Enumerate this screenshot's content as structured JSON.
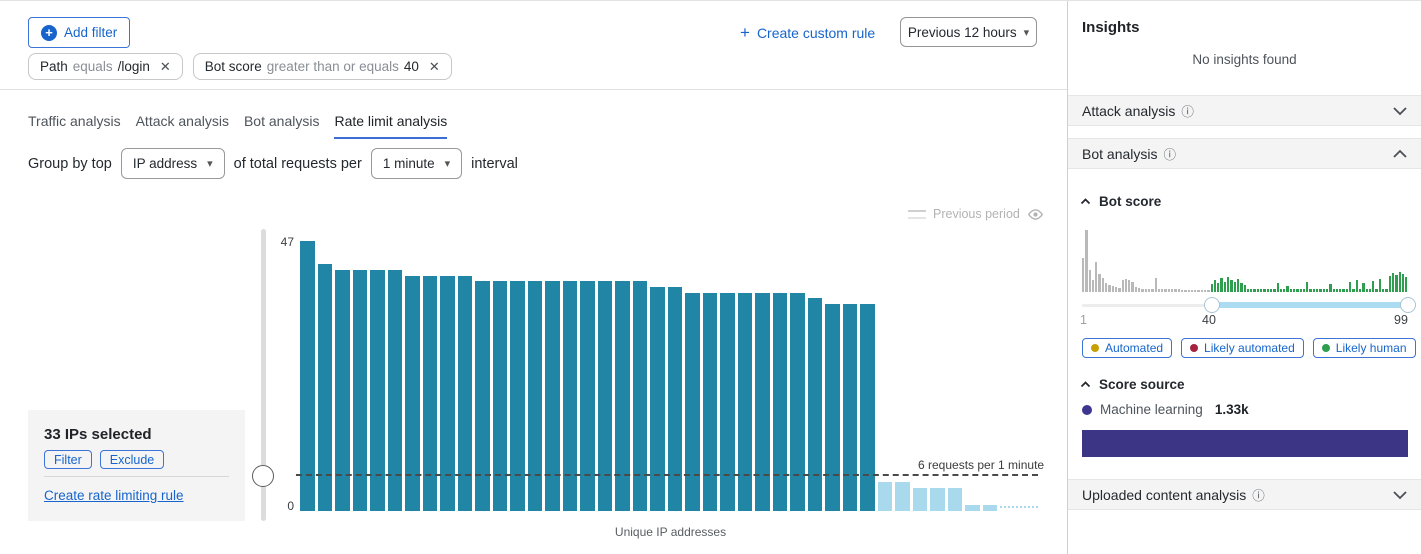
{
  "icons": {
    "plus": "+",
    "close": "✕",
    "caret_down": "▾",
    "info": "ⓘ"
  },
  "header": {
    "add_filter_label": "Add filter",
    "filters": [
      {
        "field": "Path",
        "operator": "equals",
        "value": "/login"
      },
      {
        "field": "Bot score",
        "operator": "greater than or equals",
        "value": "40"
      }
    ],
    "create_custom_rule_label": "Create custom rule",
    "time_range_label": "Previous 12 hours"
  },
  "tabs": [
    {
      "label": "Traffic analysis",
      "active": false
    },
    {
      "label": "Attack analysis",
      "active": false
    },
    {
      "label": "Bot analysis",
      "active": false
    },
    {
      "label": "Rate limit analysis",
      "active": true
    }
  ],
  "group_by": {
    "prefix": "Group by top",
    "dimension": "IP address",
    "middle": "of total requests per",
    "interval": "1 minute",
    "suffix": "interval"
  },
  "selection_panel": {
    "title": "33 IPs selected",
    "filter_label": "Filter",
    "exclude_label": "Exclude",
    "link_label": "Create rate limiting rule"
  },
  "chart_data": {
    "type": "bar",
    "title": "",
    "xlabel": "Unique IP addresses",
    "ylabel": "",
    "ylim": [
      0,
      47
    ],
    "y_top_label": "47",
    "y_bottom_label": "0",
    "legend": [
      "Previous period"
    ],
    "legend_position": "top-right",
    "grid": false,
    "threshold": {
      "value": 6,
      "label": "6 requests per 1 minute"
    },
    "categories_note": "40 unique IP addresses, sorted descending by requests per 1 minute",
    "selected_values": [
      47,
      43,
      42,
      42,
      42,
      42,
      41,
      41,
      41,
      41,
      40,
      40,
      40,
      40,
      40,
      40,
      40,
      40,
      40,
      40,
      39,
      39,
      38,
      38,
      38,
      38,
      38,
      38,
      38,
      37,
      36,
      36,
      36
    ],
    "unselected_values": [
      5,
      5,
      4,
      4,
      4,
      1,
      1
    ],
    "colors": {
      "selected": "#2185a6",
      "unselected": "#a9d9ec"
    }
  },
  "insights": {
    "title": "Insights",
    "empty_message": "No insights found",
    "sections": [
      {
        "label": "Attack analysis",
        "state": "collapsed"
      },
      {
        "label": "Bot analysis",
        "state": "expanded"
      },
      {
        "label": "Uploaded content analysis",
        "state": "collapsed"
      }
    ],
    "bot_score": {
      "title": "Bot score",
      "slider": {
        "min_label": "1",
        "mid_label": "40",
        "max_label": "99"
      },
      "histogram": {
        "colors": {
          "low": "#b9b9b9",
          "high": "#2f9e4f"
        },
        "gray_heights": [
          34,
          62,
          22,
          12,
          30,
          18,
          14,
          9,
          7,
          6,
          5,
          4,
          12,
          13,
          12,
          10,
          5,
          4,
          3,
          3,
          3,
          3,
          14,
          3,
          3,
          3,
          3,
          3,
          3,
          3,
          2,
          2,
          2,
          2,
          2,
          2,
          2,
          2,
          2
        ],
        "green_heights": [
          8,
          12,
          9,
          14,
          10,
          15,
          12,
          10,
          13,
          9,
          7,
          3,
          3,
          3,
          3,
          3,
          3,
          3,
          3,
          3,
          9,
          3,
          3,
          6,
          3,
          3,
          3,
          3,
          3,
          10,
          3,
          3,
          3,
          3,
          3,
          3,
          8,
          3,
          3,
          3,
          3,
          3,
          10,
          3,
          12,
          3,
          9,
          3,
          3,
          11,
          3,
          13,
          3,
          3,
          16,
          19,
          17,
          20,
          18,
          15
        ]
      },
      "badges": [
        {
          "label": "Automated",
          "dot_color": "#c7a008"
        },
        {
          "label": "Likely automated",
          "dot_color": "#a42440"
        },
        {
          "label": "Likely human",
          "dot_color": "#2f9e4f"
        }
      ]
    },
    "score_source": {
      "title": "Score source",
      "items": [
        {
          "label": "Machine learning",
          "value": "1.33k",
          "dot_color": "#3e3590",
          "bar_color": "#3c3484"
        }
      ]
    }
  }
}
